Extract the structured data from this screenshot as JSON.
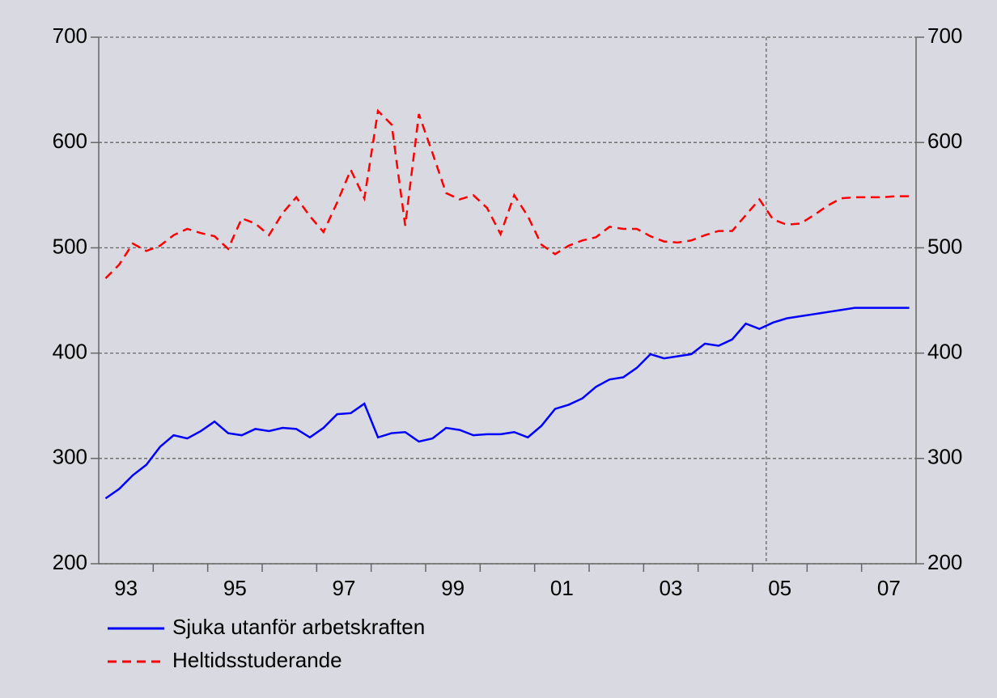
{
  "chart_data": {
    "type": "line",
    "x": [
      1993.125,
      1993.375,
      1993.625,
      1993.875,
      1994.125,
      1994.375,
      1994.625,
      1994.875,
      1995.125,
      1995.375,
      1995.625,
      1995.875,
      1996.125,
      1996.375,
      1996.625,
      1996.875,
      1997.125,
      1997.375,
      1997.625,
      1997.875,
      1998.125,
      1998.375,
      1998.625,
      1998.875,
      1999.125,
      1999.375,
      1999.625,
      1999.875,
      2000.125,
      2000.375,
      2000.625,
      2000.875,
      2001.125,
      2001.375,
      2001.625,
      2001.875,
      2002.125,
      2002.375,
      2002.625,
      2002.875,
      2003.125,
      2003.375,
      2003.625,
      2003.875,
      2004.125,
      2004.375,
      2004.625,
      2004.875,
      2005.125,
      2005.375,
      2005.625,
      2005.875,
      2006.125,
      2006.375,
      2006.625,
      2006.875,
      2007.125,
      2007.375,
      2007.625,
      2007.875
    ],
    "series": [
      {
        "name": "Sjuka utanför arbetskraften",
        "color": "#0000ff",
        "style": "solid",
        "values": [
          262,
          271,
          284,
          294,
          311,
          322,
          319,
          326,
          335,
          324,
          322,
          328,
          326,
          329,
          328,
          320,
          329,
          342,
          343,
          352,
          320,
          324,
          325,
          316,
          319,
          329,
          327,
          322,
          323,
          323,
          325,
          320,
          331,
          347,
          351,
          357,
          368,
          375,
          377,
          386,
          399,
          395,
          397,
          399,
          409,
          407,
          413,
          428,
          423,
          429,
          433,
          435,
          437,
          439,
          441,
          443,
          443,
          443,
          443,
          443
        ]
      },
      {
        "name": "Heltidsstuderande",
        "color": "#ff0000",
        "style": "dashed",
        "values": [
          471,
          484,
          504,
          497,
          502,
          512,
          518,
          514,
          511,
          499,
          528,
          523,
          512,
          533,
          548,
          530,
          515,
          543,
          574,
          547,
          630,
          617,
          521,
          627,
          590,
          552,
          546,
          550,
          538,
          513,
          550,
          530,
          503,
          494,
          502,
          507,
          510,
          520,
          518,
          518,
          511,
          506,
          505,
          507,
          512,
          516,
          516,
          531,
          546,
          527,
          522,
          523,
          531,
          540,
          547,
          548,
          548,
          548,
          549,
          549
        ]
      }
    ],
    "xlim": [
      1993,
      2008
    ],
    "xticks": [
      {
        "value": 1993.5,
        "label": "93"
      },
      {
        "value": 1995.5,
        "label": "95"
      },
      {
        "value": 1997.5,
        "label": "97"
      },
      {
        "value": 1999.5,
        "label": "99"
      },
      {
        "value": 2001.5,
        "label": "01"
      },
      {
        "value": 2003.5,
        "label": "03"
      },
      {
        "value": 2005.5,
        "label": "05"
      },
      {
        "value": 2007.5,
        "label": "07"
      }
    ],
    "xminor_ticks": [
      1994,
      1995,
      1996,
      1997,
      1998,
      1999,
      2000,
      2001,
      2002,
      2003,
      2004,
      2005,
      2006,
      2007
    ],
    "ylim": [
      200,
      700
    ],
    "yticks": [
      200,
      300,
      400,
      500,
      600,
      700
    ],
    "y2lim": [
      200,
      700
    ],
    "y2ticks": [
      200,
      300,
      400,
      500,
      600,
      700
    ],
    "vlines": [
      2005.25
    ],
    "grid": true,
    "legend": "bottom-left"
  }
}
